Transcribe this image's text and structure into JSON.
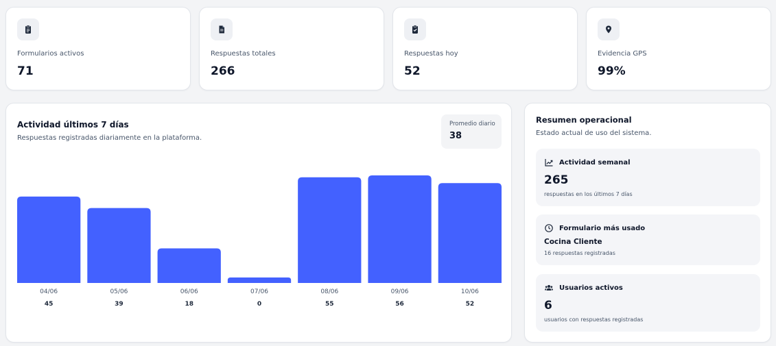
{
  "stats": [
    {
      "label": "Formularios activos",
      "value": "71",
      "icon": "clipboard-icon"
    },
    {
      "label": "Respuestas totales",
      "value": "266",
      "icon": "document-icon"
    },
    {
      "label": "Respuestas hoy",
      "value": "52",
      "icon": "clipboard-check-icon"
    },
    {
      "label": "Evidencia GPS",
      "value": "99%",
      "icon": "location-pin-icon"
    }
  ],
  "activity": {
    "title": "Actividad últimos 7 días",
    "subtitle": "Respuestas registradas diariamente en la plataforma.",
    "avg_label": "Promedio diario",
    "avg_value": "38"
  },
  "chart_data": {
    "type": "bar",
    "title": "Actividad últimos 7 días",
    "categories": [
      "04/06",
      "05/06",
      "06/06",
      "07/06",
      "08/06",
      "09/06",
      "10/06"
    ],
    "values": [
      45,
      39,
      18,
      0,
      55,
      56,
      52
    ],
    "ylim": [
      0,
      56
    ],
    "grid": false,
    "colors": {
      "bar": "#4361ff"
    }
  },
  "summary": {
    "title": "Resumen operacional",
    "subtitle": "Estado actual de uso del sistema.",
    "weekly": {
      "label": "Actividad semanal",
      "value": "265",
      "note": "respuestas en los últimos 7 días",
      "icon": "trend-chart-icon"
    },
    "top_form": {
      "label": "Formulario más usado",
      "value": "Cocina Cliente",
      "note": "16 respuestas registradas",
      "icon": "clock-icon"
    },
    "users": {
      "label": "Usuarios activos",
      "value": "6",
      "note": "usuarios con respuestas registradas",
      "icon": "users-icon"
    }
  }
}
